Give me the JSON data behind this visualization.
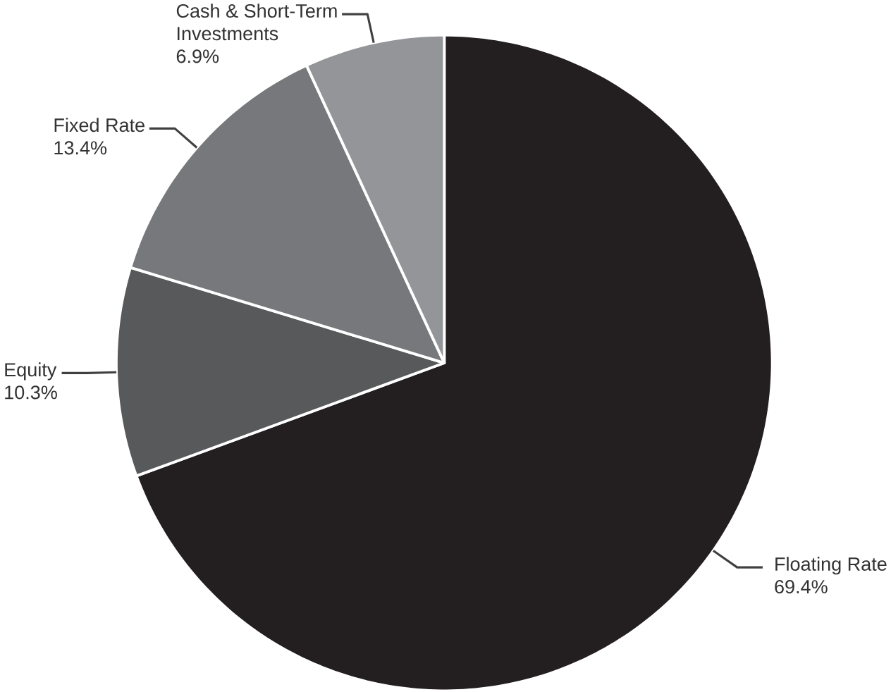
{
  "chart_data": {
    "type": "pie",
    "categories": [
      "Floating Rate",
      "Equity",
      "Fixed Rate",
      "Cash & Short-Term Investments"
    ],
    "values": [
      69.4,
      10.3,
      13.4,
      6.9
    ],
    "value_labels": [
      "69.4%",
      "10.3%",
      "13.4%",
      "6.9%"
    ],
    "colors": [
      "#231f20",
      "#58595b",
      "#77787b",
      "#939598"
    ]
  }
}
